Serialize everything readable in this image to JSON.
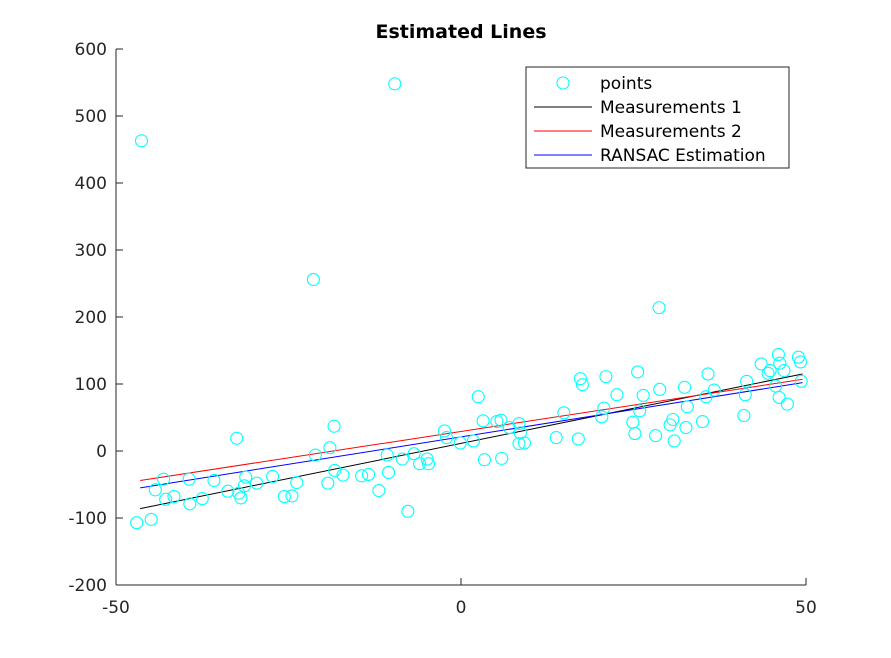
{
  "chart_data": {
    "type": "scatter",
    "title": "Estimated Lines",
    "xlabel": "",
    "ylabel": "",
    "xlim": [
      -50,
      50
    ],
    "ylim": [
      -200,
      600
    ],
    "xticks": [
      -50,
      0,
      50
    ],
    "yticks": [
      -200,
      -100,
      0,
      100,
      200,
      300,
      400,
      500,
      600
    ],
    "xtick_labels": [
      "-50",
      "0",
      "50"
    ],
    "ytick_labels": [
      "-200",
      "-100",
      "0",
      "100",
      "200",
      "300",
      "400",
      "500",
      "600"
    ],
    "grid": false,
    "legend_position": "top-right",
    "legend": [
      {
        "label": "points",
        "kind": "marker",
        "color": "#00ffff"
      },
      {
        "label": "Measurements 1",
        "kind": "line",
        "color": "#000000"
      },
      {
        "label": "Measurements 2",
        "kind": "line",
        "color": "#ff0000"
      },
      {
        "label": "RANSAC Estimation",
        "kind": "line",
        "color": "#0000ff"
      }
    ],
    "series": [
      {
        "name": "points",
        "kind": "scatter",
        "color": "#00ffff",
        "points": [
          [
            -46.3,
            463
          ],
          [
            -9.6,
            548
          ],
          [
            -21.4,
            256
          ],
          [
            28.7,
            214
          ],
          [
            -47,
            -107
          ],
          [
            -44.9,
            -102
          ],
          [
            -44.3,
            -58
          ],
          [
            -43.1,
            -42
          ],
          [
            -42.8,
            -72
          ],
          [
            -41.6,
            -68
          ],
          [
            -39.4,
            -42
          ],
          [
            -39.3,
            -79
          ],
          [
            -37.5,
            -71
          ],
          [
            -35.8,
            -44
          ],
          [
            -33.8,
            -60
          ],
          [
            -32.5,
            19
          ],
          [
            -32.2,
            -63
          ],
          [
            -31.9,
            -70
          ],
          [
            -31.4,
            -52
          ],
          [
            -31.2,
            -39
          ],
          [
            -29.6,
            -48
          ],
          [
            -27.3,
            -38
          ],
          [
            -25.6,
            -68
          ],
          [
            -24.5,
            -67
          ],
          [
            -23.8,
            -47
          ],
          [
            -21.1,
            -6
          ],
          [
            -19.3,
            -48
          ],
          [
            -19,
            5
          ],
          [
            -18.4,
            37
          ],
          [
            -18.3,
            -29
          ],
          [
            -17.1,
            -36
          ],
          [
            -14.4,
            -37
          ],
          [
            -13.4,
            -35
          ],
          [
            -11.9,
            -59
          ],
          [
            -10.7,
            -6
          ],
          [
            -10.5,
            -32
          ],
          [
            -8.5,
            -12
          ],
          [
            -7.7,
            -90
          ],
          [
            -6.8,
            -4
          ],
          [
            -6,
            -19
          ],
          [
            -4.9,
            -12
          ],
          [
            -4.7,
            -19
          ],
          [
            -2.4,
            30
          ],
          [
            -2.1,
            20
          ],
          [
            -0.1,
            12
          ],
          [
            1.8,
            15
          ],
          [
            2.5,
            81
          ],
          [
            3.2,
            45
          ],
          [
            3.4,
            -13
          ],
          [
            5.2,
            44
          ],
          [
            5.8,
            46
          ],
          [
            5.9,
            -11
          ],
          [
            7,
            35
          ],
          [
            8.4,
            41
          ],
          [
            8.6,
            27
          ],
          [
            8.4,
            11
          ],
          [
            9.2,
            12
          ],
          [
            13.8,
            20
          ],
          [
            14.9,
            57
          ],
          [
            17,
            18
          ],
          [
            17.3,
            108
          ],
          [
            17.6,
            99
          ],
          [
            20.4,
            51
          ],
          [
            20.7,
            64
          ],
          [
            21,
            111
          ],
          [
            22.6,
            84
          ],
          [
            24.9,
            43
          ],
          [
            25.2,
            26
          ],
          [
            25.6,
            118
          ],
          [
            25.9,
            60
          ],
          [
            26.4,
            83
          ],
          [
            28.2,
            23
          ],
          [
            28.8,
            92
          ],
          [
            30.3,
            39
          ],
          [
            30.7,
            47
          ],
          [
            30.9,
            15
          ],
          [
            32.4,
            95
          ],
          [
            32.6,
            35
          ],
          [
            32.8,
            66
          ],
          [
            35,
            44
          ],
          [
            35.5,
            81
          ],
          [
            35.8,
            115
          ],
          [
            36.7,
            91
          ],
          [
            41,
            53
          ],
          [
            41.2,
            84
          ],
          [
            41.4,
            104
          ],
          [
            43.5,
            130
          ],
          [
            44.5,
            116
          ],
          [
            44.8,
            120
          ],
          [
            45.6,
            97
          ],
          [
            46,
            144
          ],
          [
            46.2,
            131
          ],
          [
            46.1,
            80
          ],
          [
            46.8,
            120
          ],
          [
            47.3,
            70
          ],
          [
            48.9,
            140
          ],
          [
            49.2,
            133
          ],
          [
            49.3,
            104
          ]
        ]
      },
      {
        "name": "Measurements 1",
        "kind": "line",
        "color": "#000000",
        "x": [
          -46.5,
          49.5
        ],
        "y": [
          -86,
          115
        ]
      },
      {
        "name": "Measurements 2",
        "kind": "line",
        "color": "#ff0000",
        "x": [
          -46.5,
          49.5
        ],
        "y": [
          -44,
          107
        ]
      },
      {
        "name": "RANSAC Estimation",
        "kind": "line",
        "color": "#0000ff",
        "x": [
          -46.5,
          49.5
        ],
        "y": [
          -55,
          102
        ]
      }
    ]
  }
}
